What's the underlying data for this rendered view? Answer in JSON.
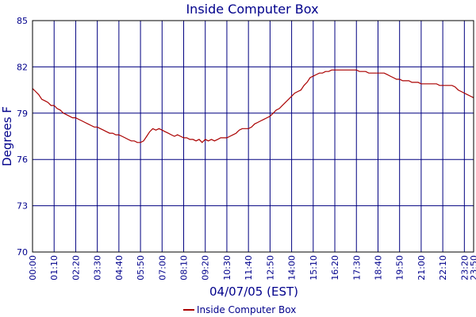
{
  "colors": {
    "grid": "#000080",
    "series": "#aa0000",
    "text": "#00008b",
    "frame": "#000000"
  },
  "chart_data": {
    "type": "line",
    "title": "Inside Computer Box",
    "xlabel": "04/07/05 (EST)",
    "ylabel": "Degrees F",
    "ylim": [
      70,
      85
    ],
    "yticks": [
      70,
      73,
      76,
      79,
      82,
      85
    ],
    "xlim_minutes": [
      0,
      1430
    ],
    "xticks": [
      "00:00",
      "01:10",
      "02:20",
      "03:30",
      "04:40",
      "05:50",
      "07:00",
      "08:10",
      "09:20",
      "10:30",
      "11:40",
      "12:50",
      "14:00",
      "15:10",
      "16:20",
      "17:30",
      "18:40",
      "19:50",
      "21:00",
      "22:10",
      "23:20",
      "23:50"
    ],
    "grid": true,
    "legend_position": "bottom-center",
    "series": [
      {
        "name": "Inside Computer Box",
        "color": "#aa0000",
        "x": [
          "00:00",
          "00:10",
          "00:20",
          "00:30",
          "00:40",
          "00:50",
          "01:00",
          "01:10",
          "01:20",
          "01:30",
          "01:40",
          "01:50",
          "02:00",
          "02:10",
          "02:20",
          "02:30",
          "02:40",
          "02:50",
          "03:00",
          "03:10",
          "03:20",
          "03:30",
          "03:40",
          "03:50",
          "04:00",
          "04:10",
          "04:20",
          "04:30",
          "04:40",
          "04:50",
          "05:00",
          "05:10",
          "05:20",
          "05:30",
          "05:40",
          "05:50",
          "06:00",
          "06:10",
          "06:20",
          "06:30",
          "06:40",
          "06:50",
          "07:00",
          "07:10",
          "07:20",
          "07:30",
          "07:40",
          "07:50",
          "08:00",
          "08:10",
          "08:20",
          "08:30",
          "08:40",
          "08:50",
          "09:00",
          "09:10",
          "09:20",
          "09:30",
          "09:40",
          "09:50",
          "10:00",
          "10:10",
          "10:20",
          "10:30",
          "10:40",
          "10:50",
          "11:00",
          "11:10",
          "11:20",
          "11:30",
          "11:40",
          "11:50",
          "12:00",
          "12:10",
          "12:20",
          "12:30",
          "12:40",
          "12:50",
          "13:00",
          "13:10",
          "13:20",
          "13:30",
          "13:40",
          "13:50",
          "14:00",
          "14:10",
          "14:20",
          "14:30",
          "14:40",
          "14:50",
          "15:00",
          "15:10",
          "15:20",
          "15:30",
          "15:40",
          "15:50",
          "16:00",
          "16:10",
          "16:20",
          "16:30",
          "16:40",
          "16:50",
          "17:00",
          "17:10",
          "17:20",
          "17:30",
          "17:40",
          "17:50",
          "18:00",
          "18:10",
          "18:20",
          "18:30",
          "18:40",
          "18:50",
          "19:00",
          "19:10",
          "19:20",
          "19:30",
          "19:40",
          "19:50",
          "20:00",
          "20:10",
          "20:20",
          "20:30",
          "20:40",
          "20:50",
          "21:00",
          "21:10",
          "21:20",
          "21:30",
          "21:40",
          "21:50",
          "22:00",
          "22:10",
          "22:20",
          "22:30",
          "22:40",
          "22:50",
          "23:00",
          "23:10",
          "23:20",
          "23:30",
          "23:40",
          "23:50"
        ],
        "values": [
          80.6,
          80.4,
          80.2,
          79.9,
          79.8,
          79.7,
          79.5,
          79.5,
          79.3,
          79.2,
          79.0,
          78.9,
          78.8,
          78.7,
          78.7,
          78.6,
          78.5,
          78.4,
          78.3,
          78.2,
          78.1,
          78.1,
          78.0,
          77.9,
          77.8,
          77.7,
          77.7,
          77.6,
          77.6,
          77.5,
          77.4,
          77.3,
          77.2,
          77.2,
          77.1,
          77.1,
          77.2,
          77.5,
          77.8,
          78.0,
          77.9,
          78.0,
          77.9,
          77.8,
          77.7,
          77.6,
          77.5,
          77.6,
          77.5,
          77.4,
          77.4,
          77.3,
          77.3,
          77.2,
          77.3,
          77.1,
          77.3,
          77.2,
          77.3,
          77.2,
          77.3,
          77.4,
          77.4,
          77.4,
          77.5,
          77.6,
          77.7,
          77.9,
          78.0,
          78.0,
          78.0,
          78.1,
          78.3,
          78.4,
          78.5,
          78.6,
          78.7,
          78.8,
          79.0,
          79.2,
          79.3,
          79.5,
          79.7,
          79.9,
          80.1,
          80.3,
          80.4,
          80.5,
          80.8,
          81.0,
          81.3,
          81.4,
          81.5,
          81.6,
          81.6,
          81.7,
          81.7,
          81.8,
          81.8,
          81.8,
          81.8,
          81.8,
          81.8,
          81.8,
          81.8,
          81.8,
          81.7,
          81.7,
          81.7,
          81.6,
          81.6,
          81.6,
          81.6,
          81.6,
          81.6,
          81.5,
          81.4,
          81.3,
          81.2,
          81.2,
          81.1,
          81.1,
          81.1,
          81.0,
          81.0,
          81.0,
          80.9,
          80.9,
          80.9,
          80.9,
          80.9,
          80.9,
          80.8,
          80.8,
          80.8,
          80.8,
          80.8,
          80.7,
          80.5,
          80.4,
          80.3,
          80.2,
          80.1,
          80.0
        ]
      }
    ]
  }
}
